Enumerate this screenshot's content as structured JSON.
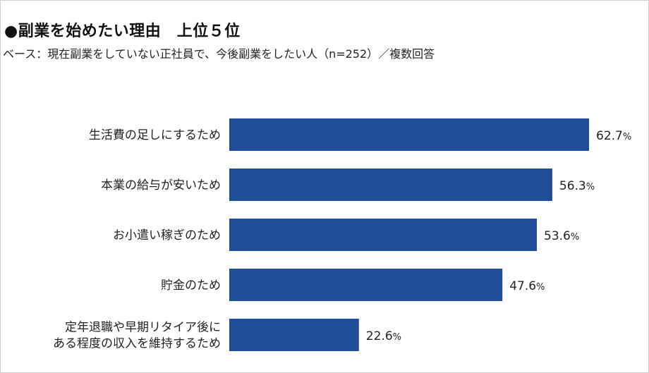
{
  "title": "●副業を始めたい理由　上位５位",
  "subtitle": "ベース：現在副業をしていない正社員で、今後副業をしたい人（n=252）／複数回答",
  "chart_data": {
    "type": "bar",
    "orientation": "horizontal",
    "title": "●副業を始めたい理由　上位５位",
    "subtitle": "ベース：現在副業をしていない正社員で、今後副業をしたい人（n=252）／複数回答",
    "categories": [
      [
        "生活費の足しにするため"
      ],
      [
        "本業の給与が安いため"
      ],
      [
        "お小遣い稼ぎのため"
      ],
      [
        "貯金のため"
      ],
      [
        "定年退職や早期リタイア後に",
        "ある程度の収入を維持するため"
      ]
    ],
    "values": [
      62.7,
      56.3,
      53.6,
      47.6,
      22.6
    ],
    "value_labels": [
      "62.7",
      "56.3",
      "53.6",
      "47.6",
      "22.6"
    ],
    "unit": "%",
    "xlim": [
      0,
      62.7
    ],
    "bar_color": "#1f4e96",
    "grid": false,
    "legend": "none"
  }
}
